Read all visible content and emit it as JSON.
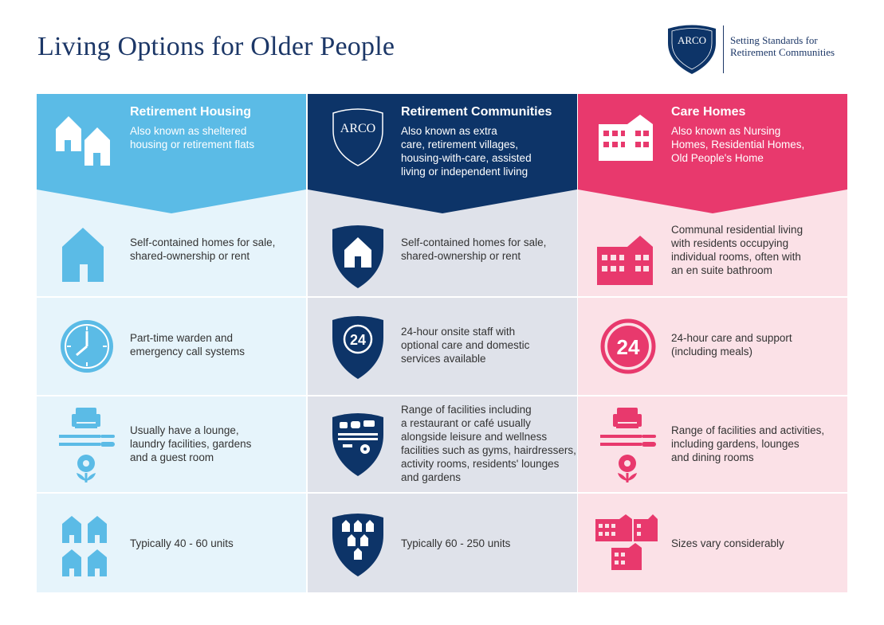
{
  "page": {
    "title": "Living Options for Older People"
  },
  "brand": {
    "logo_text": "ARCO",
    "tagline_line1": "Setting Standards for",
    "tagline_line2": "Retirement Communities"
  },
  "colors": {
    "navy": "#0d3468",
    "sky": "#5bbbe6",
    "pink": "#e8396d",
    "sky_light": "#e6f4fb",
    "grey_light": "#dfe2ea",
    "pink_light": "#fbe1e7"
  },
  "columns": [
    {
      "title": "Retirement Housing",
      "icon": "two-houses-icon",
      "subtitle": [
        "Also known as sheltered",
        "housing or retirement flats"
      ],
      "rows": [
        {
          "icon": "house-icon",
          "text": [
            "Self-contained homes for sale,",
            "shared-ownership or rent"
          ]
        },
        {
          "icon": "clock-icon",
          "text": [
            "Part-time warden and",
            "emergency call systems"
          ]
        },
        {
          "icon": "facilities-icon",
          "text": [
            "Usually have a lounge,",
            "laundry facilities, gardens",
            "and a guest room"
          ]
        },
        {
          "icon": "four-houses-icon",
          "text": [
            "Typically 40 - 60 units"
          ]
        }
      ]
    },
    {
      "title": "Retirement Communities",
      "icon": "arco-shield-icon",
      "subtitle": [
        "Also known as extra",
        "care, retirement villages,",
        "housing-with-care, assisted",
        "living or independent living"
      ],
      "rows": [
        {
          "icon": "shield-house-icon",
          "text": [
            "Self-contained homes for sale,",
            "shared-ownership or rent"
          ]
        },
        {
          "icon": "shield-24-icon",
          "text": [
            "24-hour onsite staff with",
            "optional care and domestic",
            "services available"
          ]
        },
        {
          "icon": "shield-facilities-icon",
          "text": [
            "Range of facilities including",
            "a restaurant or café usually",
            "alongside leisure and wellness",
            "facilities such as gyms, hairdressers,",
            "activity rooms, residents' lounges",
            "and gardens"
          ]
        },
        {
          "icon": "shield-village-icon",
          "text": [
            "Typically 60 - 250 units"
          ]
        }
      ]
    },
    {
      "title": "Care Homes",
      "icon": "care-building-icon",
      "subtitle": [
        "Also known as Nursing",
        "Homes, Residential Homes,",
        "Old People's Home"
      ],
      "rows": [
        {
          "icon": "building-icon",
          "text": [
            "Communal residential living",
            "with residents occupying",
            "individual rooms, often with",
            "an en suite bathroom"
          ]
        },
        {
          "icon": "circle-24-icon",
          "text": [
            "24-hour care and support",
            "(including meals)"
          ]
        },
        {
          "icon": "facilities-icon",
          "text": [
            "Range of facilities and activities,",
            "including gardens, lounges",
            "and dining rooms"
          ]
        },
        {
          "icon": "three-buildings-icon",
          "text": [
            "Sizes vary considerably"
          ]
        }
      ]
    }
  ],
  "icon_labels": {
    "twenty_four": "24"
  }
}
